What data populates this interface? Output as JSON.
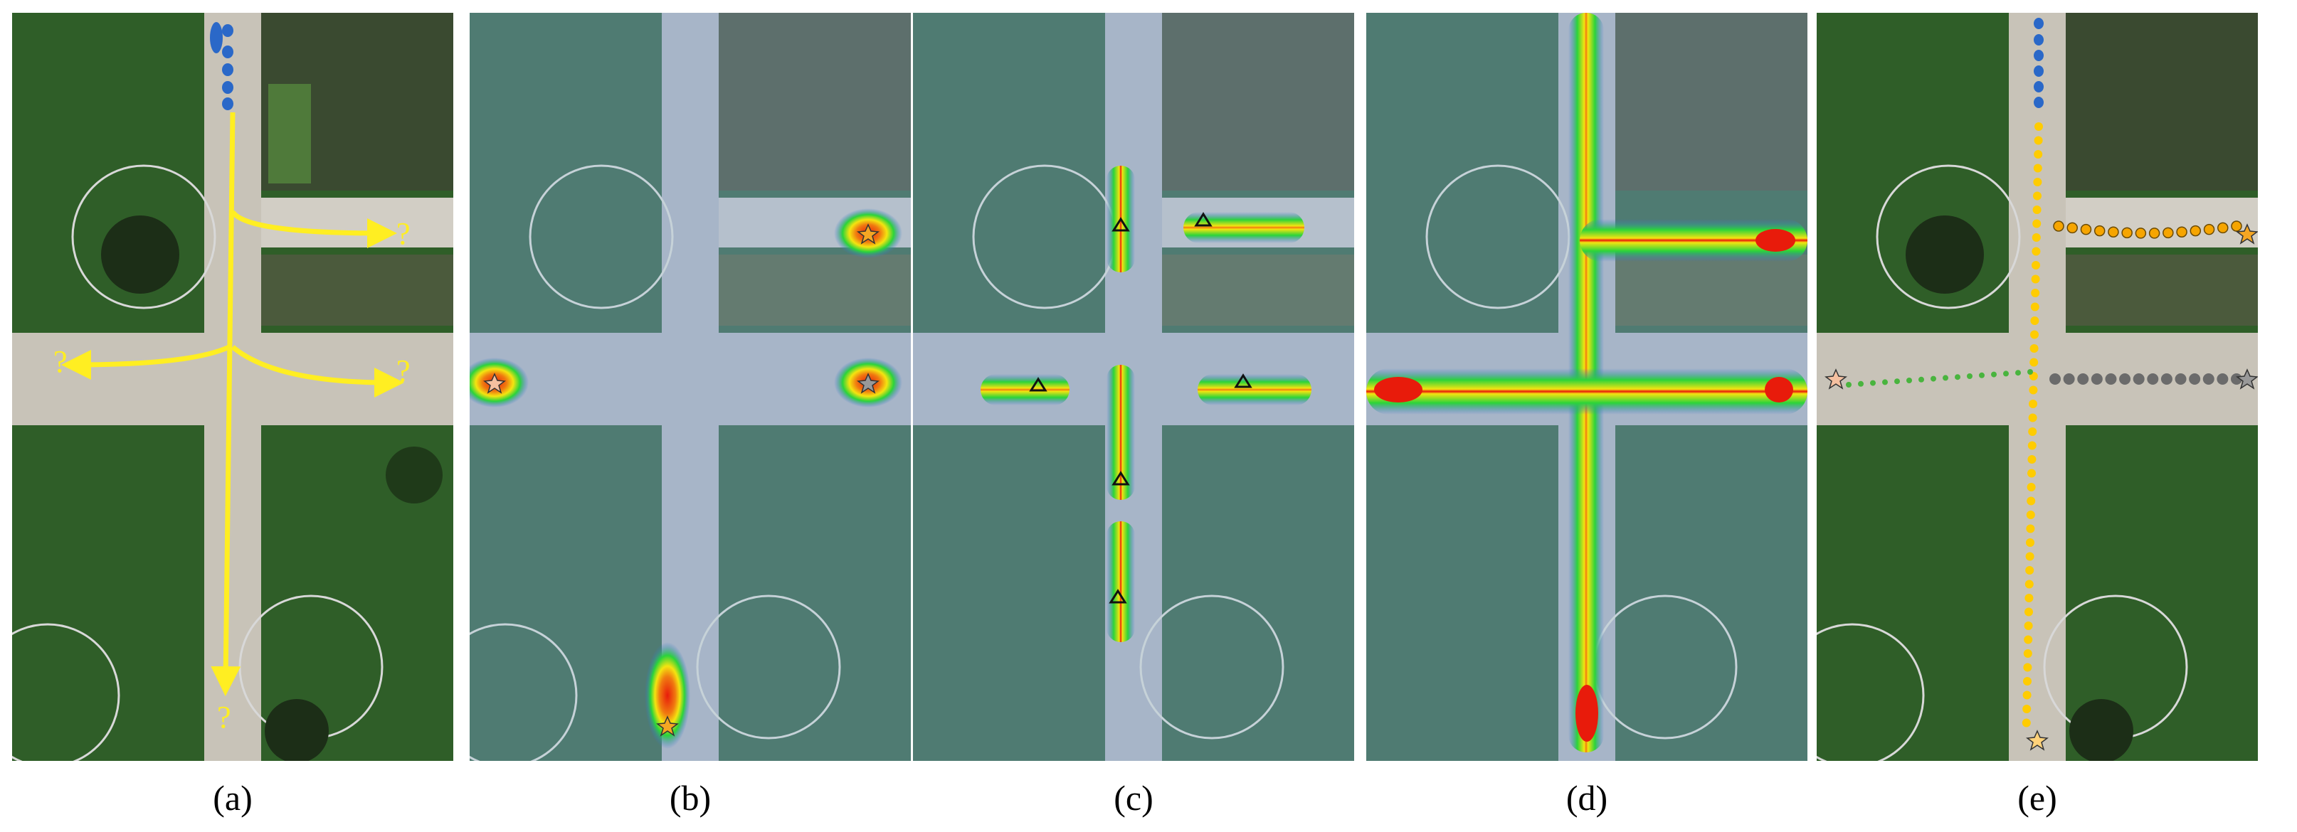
{
  "figure": {
    "panels": [
      {
        "id": "a",
        "caption": "(a)",
        "overlay": "candidate-path-arrows",
        "question_mark": "?"
      },
      {
        "id": "b",
        "caption": "(b)",
        "overlay": "destination-heatmap"
      },
      {
        "id": "c",
        "caption": "(c)",
        "overlay": "waypoint-heatmap"
      },
      {
        "id": "d",
        "caption": "(d)",
        "overlay": "path-heatmap"
      },
      {
        "id": "e",
        "caption": "(e)",
        "overlay": "predicted-trajectories"
      }
    ]
  },
  "colors": {
    "grass": "#2f5e28",
    "path": "#c8c3b8",
    "arrow": "#ffee22",
    "observed": "#2a68c8",
    "heat_core": "#e81b0b",
    "heat_mid": "#f4e410",
    "heat_outer": "#2bd43a",
    "traj_orange": "#f6a500",
    "traj_green": "#49b43e",
    "traj_gray": "#6b6b6b",
    "traj_yellow": "#ffcc00"
  }
}
